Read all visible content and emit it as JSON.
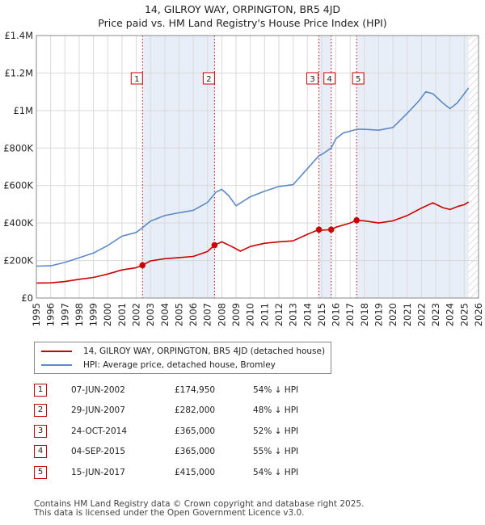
{
  "title_line1": "14, GILROY WAY, ORPINGTON, BR5 4JD",
  "title_line2": "Price paid vs. HM Land Registry's House Price Index (HPI)",
  "colors": {
    "property": "#cc0000",
    "hpi": "#5b8ac6",
    "shade": "#e8eef8",
    "grid": "#d9d9d9"
  },
  "chart_data": {
    "type": "line",
    "xlim": [
      1995,
      2026
    ],
    "ylim": [
      0,
      1400000
    ],
    "x_ticks": [
      1995,
      1996,
      1997,
      1998,
      1999,
      2000,
      2001,
      2002,
      2003,
      2004,
      2005,
      2006,
      2007,
      2008,
      2009,
      2010,
      2011,
      2012,
      2013,
      2014,
      2015,
      2016,
      2017,
      2018,
      2019,
      2020,
      2021,
      2022,
      2023,
      2024,
      2025,
      2026
    ],
    "y_ticks": [
      {
        "value": 0,
        "label": "£0"
      },
      {
        "value": 200000,
        "label": "£200K"
      },
      {
        "value": 400000,
        "label": "£400K"
      },
      {
        "value": 600000,
        "label": "£600K"
      },
      {
        "value": 800000,
        "label": "£800K"
      },
      {
        "value": 1000000,
        "label": "£1M"
      },
      {
        "value": 1200000,
        "label": "£1.2M"
      },
      {
        "value": 1400000,
        "label": "£1.4M"
      }
    ],
    "shaded_spans": [
      [
        2002.44,
        2007.49
      ],
      [
        2014.81,
        2015.67
      ],
      [
        2017.45,
        2025.3
      ]
    ],
    "hatched_from": 2025.3,
    "series": [
      {
        "name": "14, GILROY WAY, ORPINGTON, BR5 4JD (detached house)",
        "color": "#cc0000",
        "points": [
          [
            1995,
            80000
          ],
          [
            1996,
            81000
          ],
          [
            1997,
            88000
          ],
          [
            1998,
            100000
          ],
          [
            1999,
            110000
          ],
          [
            2000,
            128000
          ],
          [
            2001,
            150000
          ],
          [
            2002,
            162000
          ],
          [
            2002.44,
            174950
          ],
          [
            2003,
            198000
          ],
          [
            2004,
            210000
          ],
          [
            2005,
            216000
          ],
          [
            2006,
            222000
          ],
          [
            2007,
            248000
          ],
          [
            2007.49,
            282000
          ],
          [
            2008,
            300000
          ],
          [
            2008.7,
            275000
          ],
          [
            2009.3,
            250000
          ],
          [
            2010,
            275000
          ],
          [
            2011,
            292000
          ],
          [
            2012,
            300000
          ],
          [
            2013,
            305000
          ],
          [
            2014,
            340000
          ],
          [
            2014.81,
            365000
          ],
          [
            2015,
            362000
          ],
          [
            2015.67,
            365000
          ],
          [
            2016,
            378000
          ],
          [
            2017,
            400000
          ],
          [
            2017.45,
            415000
          ],
          [
            2018,
            412000
          ],
          [
            2019,
            400000
          ],
          [
            2020,
            412000
          ],
          [
            2021,
            440000
          ],
          [
            2022,
            480000
          ],
          [
            2022.8,
            508000
          ],
          [
            2023.5,
            482000
          ],
          [
            2024,
            472000
          ],
          [
            2024.6,
            490000
          ],
          [
            2025,
            498000
          ],
          [
            2025.3,
            512000
          ]
        ]
      },
      {
        "name": "HPI: Average price, detached house, Bromley",
        "color": "#5b8ac6",
        "points": [
          [
            1995,
            170000
          ],
          [
            1996,
            172000
          ],
          [
            1997,
            190000
          ],
          [
            1998,
            215000
          ],
          [
            1999,
            240000
          ],
          [
            2000,
            280000
          ],
          [
            2001,
            330000
          ],
          [
            2002,
            350000
          ],
          [
            2002.44,
            375000
          ],
          [
            2003,
            410000
          ],
          [
            2004,
            440000
          ],
          [
            2005,
            455000
          ],
          [
            2006,
            468000
          ],
          [
            2007,
            510000
          ],
          [
            2007.6,
            565000
          ],
          [
            2008,
            580000
          ],
          [
            2008.5,
            545000
          ],
          [
            2009,
            492000
          ],
          [
            2010,
            540000
          ],
          [
            2011,
            570000
          ],
          [
            2012,
            595000
          ],
          [
            2013,
            605000
          ],
          [
            2014,
            690000
          ],
          [
            2014.81,
            760000
          ],
          [
            2015,
            765000
          ],
          [
            2015.67,
            800000
          ],
          [
            2016,
            850000
          ],
          [
            2016.5,
            880000
          ],
          [
            2017,
            890000
          ],
          [
            2017.45,
            900000
          ],
          [
            2018,
            900000
          ],
          [
            2019,
            895000
          ],
          [
            2020,
            910000
          ],
          [
            2021,
            985000
          ],
          [
            2021.8,
            1050000
          ],
          [
            2022.3,
            1100000
          ],
          [
            2022.8,
            1090000
          ],
          [
            2023.5,
            1040000
          ],
          [
            2024,
            1010000
          ],
          [
            2024.5,
            1040000
          ],
          [
            2025,
            1090000
          ],
          [
            2025.3,
            1120000
          ]
        ]
      }
    ],
    "sales": [
      {
        "num": "1",
        "x": 2002.44,
        "y": 174950
      },
      {
        "num": "2",
        "x": 2007.49,
        "y": 282000
      },
      {
        "num": "3",
        "x": 2014.81,
        "y": 365000
      },
      {
        "num": "4",
        "x": 2015.67,
        "y": 365000
      },
      {
        "num": "5",
        "x": 2017.45,
        "y": 415000
      }
    ]
  },
  "legend": {
    "property_label": "14, GILROY WAY, ORPINGTON, BR5 4JD (detached house)",
    "hpi_label": "HPI: Average price, detached house, Bromley"
  },
  "sales_table": [
    {
      "num": "1",
      "date": "07-JUN-2002",
      "price": "£174,950",
      "hpi": "54% ↓ HPI"
    },
    {
      "num": "2",
      "date": "29-JUN-2007",
      "price": "£282,000",
      "hpi": "48% ↓ HPI"
    },
    {
      "num": "3",
      "date": "24-OCT-2014",
      "price": "£365,000",
      "hpi": "52% ↓ HPI"
    },
    {
      "num": "4",
      "date": "04-SEP-2015",
      "price": "£365,000",
      "hpi": "55% ↓ HPI"
    },
    {
      "num": "5",
      "date": "15-JUN-2017",
      "price": "£415,000",
      "hpi": "54% ↓ HPI"
    }
  ],
  "footer_line1": "Contains HM Land Registry data © Crown copyright and database right 2025.",
  "footer_line2": "This data is licensed under the Open Government Licence v3.0."
}
